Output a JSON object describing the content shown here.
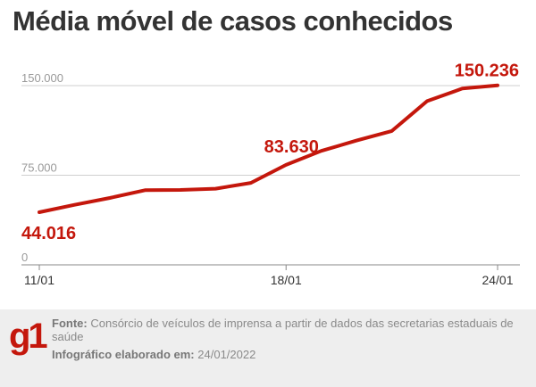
{
  "title": "Média móvel de casos conhecidos",
  "colors": {
    "line": "#c4170c",
    "grid": "#cfcfcf",
    "text": "#333333"
  },
  "chart_data": {
    "type": "line",
    "title": "Média móvel de casos conhecidos",
    "xlabel": "",
    "ylabel": "",
    "ylim": [
      0,
      150000
    ],
    "y_ticks": [
      {
        "value": 0,
        "label": "0"
      },
      {
        "value": 75000,
        "label": "75.000"
      },
      {
        "value": 150000,
        "label": "150.000"
      }
    ],
    "x_ticks": [
      {
        "index": 0,
        "label": "11/01"
      },
      {
        "index": 7,
        "label": "18/01"
      },
      {
        "index": 13,
        "label": "24/01"
      }
    ],
    "x": [
      "11/01",
      "12/01",
      "13/01",
      "14/01",
      "15/01",
      "16/01",
      "17/01",
      "18/01",
      "19/01",
      "20/01",
      "21/01",
      "22/01",
      "23/01",
      "24/01"
    ],
    "series": [
      {
        "values": [
          44016,
          50200,
          56000,
          62500,
          62700,
          63700,
          68600,
          83630,
          95400,
          104000,
          112000,
          137000,
          147500,
          150236
        ]
      }
    ],
    "data_labels": [
      {
        "index": 0,
        "label": "44.016"
      },
      {
        "index": 7,
        "label": "83.630"
      },
      {
        "index": 13,
        "label": "150.236"
      }
    ],
    "grid": true
  },
  "footer": {
    "logo": "g1",
    "source_label": "Fonte:",
    "source_text": "Consórcio de veículos de imprensa a partir de dados das secretarias estaduais de saúde",
    "date_label": "Infográfico elaborado em:",
    "date_text": "24/01/2022"
  }
}
